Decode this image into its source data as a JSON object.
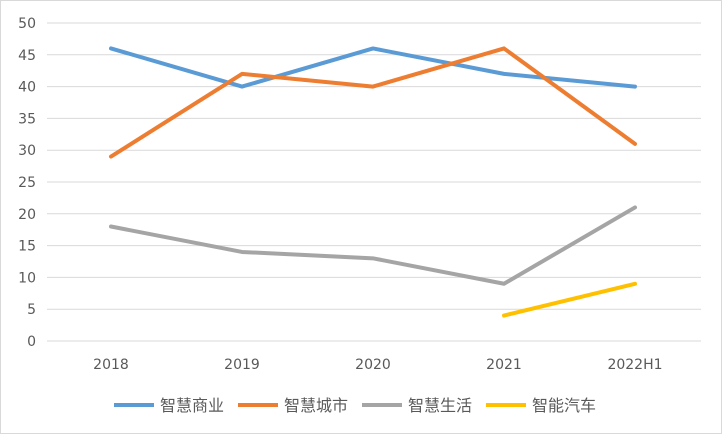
{
  "chart_data": {
    "type": "line",
    "title": "",
    "xlabel": "",
    "ylabel": "",
    "categories": [
      "2018",
      "2019",
      "2020",
      "2021",
      "2022H1"
    ],
    "ylim": [
      0,
      50
    ],
    "yticks": [
      0,
      5,
      10,
      15,
      20,
      25,
      30,
      35,
      40,
      45,
      50
    ],
    "grid": true,
    "legend_position": "bottom",
    "series": [
      {
        "name": "智慧商业",
        "color": "#5B9BD5",
        "values": [
          46,
          40,
          46,
          42,
          40
        ]
      },
      {
        "name": "智慧城市",
        "color": "#ED7D31",
        "values": [
          29,
          42,
          40,
          46,
          31
        ]
      },
      {
        "name": "智慧生活",
        "color": "#A5A5A5",
        "values": [
          18,
          14,
          13,
          9,
          21
        ]
      },
      {
        "name": "智能汽车",
        "color": "#FFC000",
        "values": [
          null,
          null,
          null,
          4,
          9
        ]
      }
    ]
  }
}
